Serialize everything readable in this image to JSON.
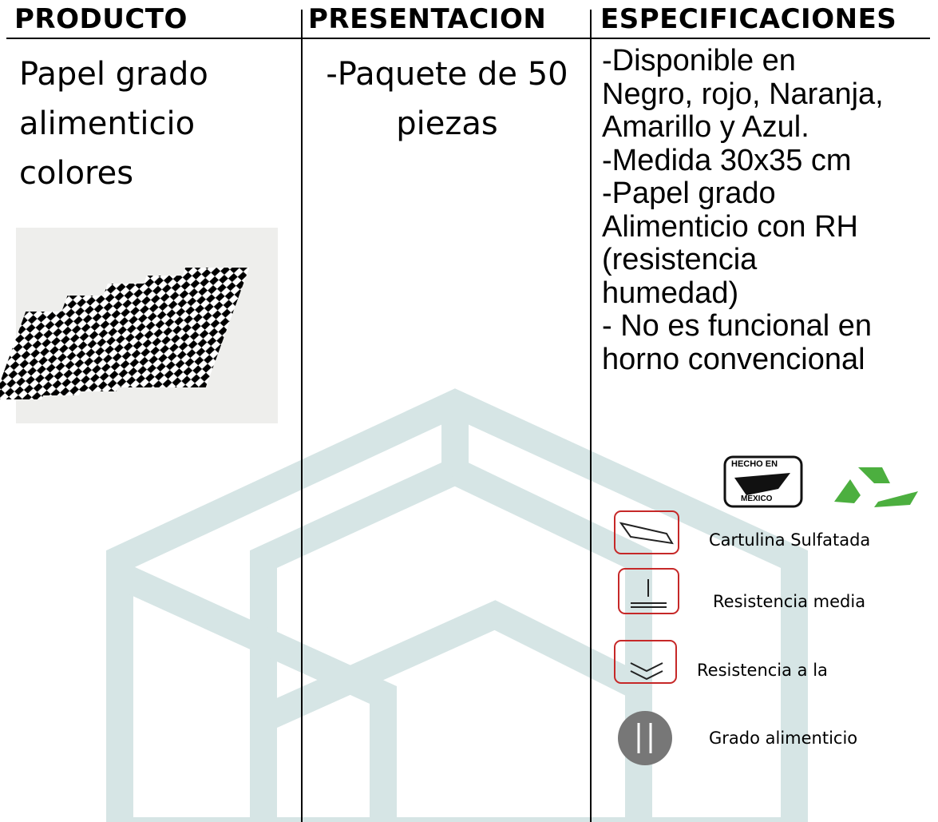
{
  "header": {
    "columns": [
      "PRODUCTO",
      "PRESENTACION",
      "ESPECIFICACIONES"
    ]
  },
  "product": {
    "name_lines": [
      "Papel grado",
      "alimenticio",
      "colores"
    ]
  },
  "presentation": {
    "lines": [
      "-Paquete de 50",
      "piezas"
    ]
  },
  "specifications": {
    "lines": [
      "-Disponible en",
      "Negro, rojo, Naranja,",
      "Amarillo y Azul.",
      "-Medida 30x35 cm",
      "-Papel grado",
      "Alimenticio con RH",
      "(resistencia",
      "humedad)",
      "- No es funcional en",
      "horno convencional"
    ]
  },
  "badges": {
    "hecho_en": "HECHO EN",
    "mexico": "MEXICO"
  },
  "features": [
    {
      "label": "Cartulina Sulfatada"
    },
    {
      "label": "Resistencia media"
    },
    {
      "label": "Resistencia a la"
    },
    {
      "label": "Grado alimenticio"
    }
  ]
}
